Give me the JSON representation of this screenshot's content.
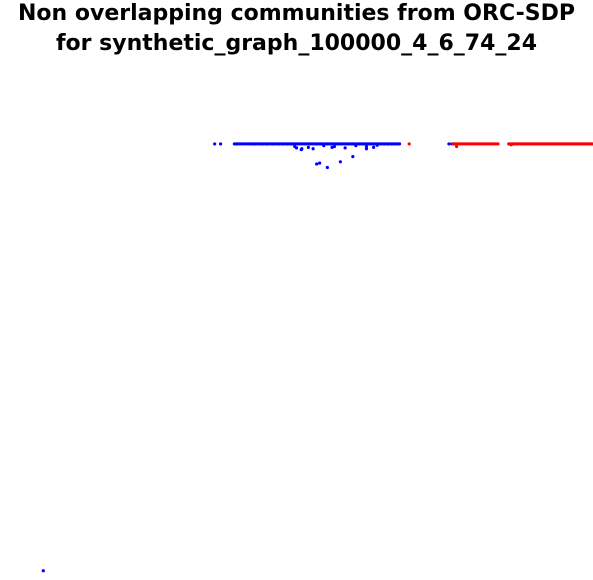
{
  "chart_data": {
    "type": "scatter",
    "title_lines": [
      "Non overlapping communities from ORC-SDP",
      "for synthetic_graph_100000_4_6_74_24"
    ],
    "xlabel": "",
    "ylabel": "",
    "axes_visible": false,
    "grid": false,
    "legend": "none",
    "xlim": [
      0,
      1
    ],
    "ylim": [
      0,
      1
    ],
    "series": [
      {
        "color": "#0000ff",
        "points": [
          [
            0.073,
            0.012
          ],
          [
            0.362,
            0.991
          ],
          [
            0.372,
            0.991
          ],
          [
            0.396,
            0.991
          ],
          [
            0.4,
            0.991
          ],
          [
            0.424,
            0.991
          ],
          [
            0.43,
            0.991
          ],
          [
            0.442,
            0.991
          ],
          [
            0.45,
            0.991
          ],
          [
            0.461,
            0.991
          ],
          [
            0.47,
            0.991
          ],
          [
            0.478,
            0.991
          ],
          [
            0.485,
            0.991
          ],
          [
            0.492,
            0.991
          ],
          [
            0.497,
            0.985
          ],
          [
            0.503,
            0.991
          ],
          [
            0.509,
            0.98
          ],
          [
            0.515,
            0.991
          ],
          [
            0.521,
            0.991
          ],
          [
            0.528,
            0.98
          ],
          [
            0.534,
            0.991
          ],
          [
            0.54,
            0.991
          ],
          [
            0.546,
            0.987
          ],
          [
            0.552,
            0.991
          ],
          [
            0.558,
            0.991
          ],
          [
            0.564,
            0.985
          ],
          [
            0.57,
            0.991
          ],
          [
            0.576,
            0.991
          ],
          [
            0.582,
            0.982
          ],
          [
            0.588,
            0.991
          ],
          [
            0.594,
            0.991
          ],
          [
            0.6,
            0.987
          ],
          [
            0.606,
            0.991
          ],
          [
            0.612,
            0.991
          ],
          [
            0.618,
            0.985
          ],
          [
            0.624,
            0.991
          ],
          [
            0.63,
            0.991
          ],
          [
            0.636,
            0.988
          ],
          [
            0.642,
            0.991
          ],
          [
            0.648,
            0.991
          ],
          [
            0.654,
            0.991
          ],
          [
            0.66,
            0.991
          ],
          [
            0.666,
            0.991
          ],
          [
            0.672,
            0.991
          ],
          [
            0.757,
            0.991
          ],
          [
            0.762,
            0.991
          ],
          [
            0.766,
            0.991
          ],
          [
            0.534,
            0.945
          ],
          [
            0.539,
            0.947
          ],
          [
            0.552,
            0.937
          ],
          [
            0.574,
            0.95
          ],
          [
            0.595,
            0.962
          ],
          [
            0.5,
            0.982
          ],
          [
            0.508,
            0.978
          ],
          [
            0.52,
            0.983
          ],
          [
            0.56,
            0.983
          ],
          [
            0.618,
            0.98
          ],
          [
            0.63,
            0.983
          ]
        ],
        "band": [
          0.395,
          0.674,
          0.991
        ]
      },
      {
        "color": "#ff0000",
        "points": [
          [
            0.69,
            0.991
          ],
          [
            0.764,
            0.991
          ],
          [
            0.77,
            0.985
          ],
          [
            0.858,
            0.991
          ],
          [
            0.862,
            0.989
          ],
          [
            0.866,
            0.991
          ],
          [
            0.872,
            0.991
          ],
          [
            0.878,
            0.991
          ],
          [
            0.884,
            0.991
          ],
          [
            0.89,
            0.991
          ],
          [
            0.896,
            0.991
          ],
          [
            0.902,
            0.991
          ],
          [
            0.908,
            0.991
          ],
          [
            0.914,
            0.991
          ],
          [
            0.92,
            0.991
          ],
          [
            0.926,
            0.991
          ],
          [
            0.932,
            0.991
          ],
          [
            0.938,
            0.991
          ],
          [
            0.944,
            0.991
          ],
          [
            0.95,
            0.991
          ],
          [
            0.956,
            0.991
          ],
          [
            0.962,
            0.991
          ],
          [
            0.968,
            0.991
          ],
          [
            0.974,
            0.991
          ],
          [
            0.98,
            0.991
          ],
          [
            0.986,
            0.991
          ],
          [
            0.992,
            0.991
          ],
          [
            0.998,
            0.991
          ]
        ],
        "bands": [
          [
            0.764,
            0.84,
            0.991
          ],
          [
            0.858,
            1.0,
            0.991
          ]
        ]
      }
    ]
  }
}
